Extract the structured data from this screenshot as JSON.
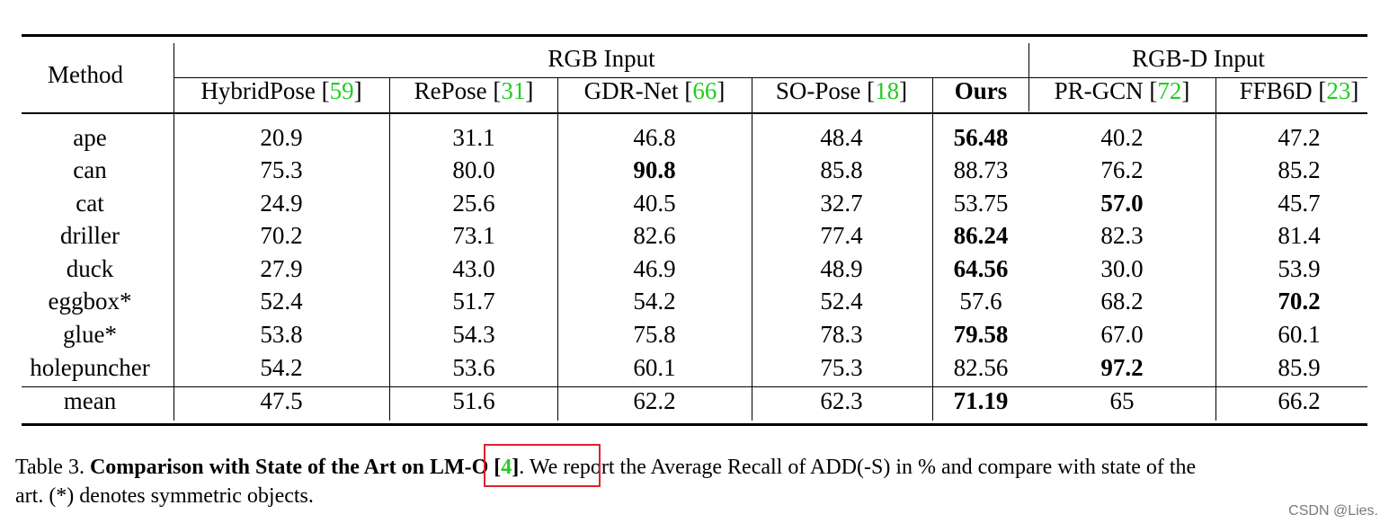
{
  "table": {
    "method_header": "Method",
    "group_rgb": "RGB Input",
    "group_rgbd": "RGB-D Input",
    "columns": [
      {
        "name": "HybridPose",
        "cite": "59"
      },
      {
        "name": "RePose",
        "cite": "31"
      },
      {
        "name": "GDR-Net",
        "cite": "66"
      },
      {
        "name": "SO-Pose",
        "cite": "18"
      },
      {
        "name": "Ours",
        "cite": ""
      },
      {
        "name": "PR-GCN",
        "cite": "72"
      },
      {
        "name": "FFB6D",
        "cite": "23"
      }
    ],
    "rows": [
      {
        "method": "ape",
        "values": [
          "20.9",
          "31.1",
          "46.8",
          "48.4",
          "56.48",
          "40.2",
          "47.2"
        ],
        "bold_index": 4
      },
      {
        "method": "can",
        "values": [
          "75.3",
          "80.0",
          "90.8",
          "85.8",
          "88.73",
          "76.2",
          "85.2"
        ],
        "bold_index": 2
      },
      {
        "method": "cat",
        "values": [
          "24.9",
          "25.6",
          "40.5",
          "32.7",
          "53.75",
          "57.0",
          "45.7"
        ],
        "bold_index": 5
      },
      {
        "method": "driller",
        "values": [
          "70.2",
          "73.1",
          "82.6",
          "77.4",
          "86.24",
          "82.3",
          "81.4"
        ],
        "bold_index": 4
      },
      {
        "method": "duck",
        "values": [
          "27.9",
          "43.0",
          "46.9",
          "48.9",
          "64.56",
          "30.0",
          "53.9"
        ],
        "bold_index": 4
      },
      {
        "method": "eggbox*",
        "values": [
          "52.4",
          "51.7",
          "54.2",
          "52.4",
          "57.6",
          "68.2",
          "70.2"
        ],
        "bold_index": 6
      },
      {
        "method": "glue*",
        "values": [
          "53.8",
          "54.3",
          "75.8",
          "78.3",
          "79.58",
          "67.0",
          "60.1"
        ],
        "bold_index": 4
      },
      {
        "method": "holepuncher",
        "values": [
          "54.2",
          "53.6",
          "60.1",
          "75.3",
          "82.56",
          "97.2",
          "85.9"
        ],
        "bold_index": 5
      }
    ],
    "mean_row": {
      "method": "mean",
      "values": [
        "47.5",
        "51.6",
        "62.2",
        "62.3",
        "71.19",
        "65",
        "66.2"
      ],
      "bold_index": 4
    }
  },
  "caption": {
    "label": "Table 3.",
    "bold_prefix": "Comparison with State of the Art on ",
    "highlight_text": "LM-O [",
    "highlight_cite": "4",
    "highlight_close": "]",
    "rest_line1": ". We report the Average Recall of ADD(-S) in % and compare with state of the",
    "line2": "art. (*) denotes symmetric objects."
  },
  "watermark": "CSDN @Lies.",
  "colors": {
    "cite": "#22cc22",
    "highlight_border": "#d9232e"
  }
}
